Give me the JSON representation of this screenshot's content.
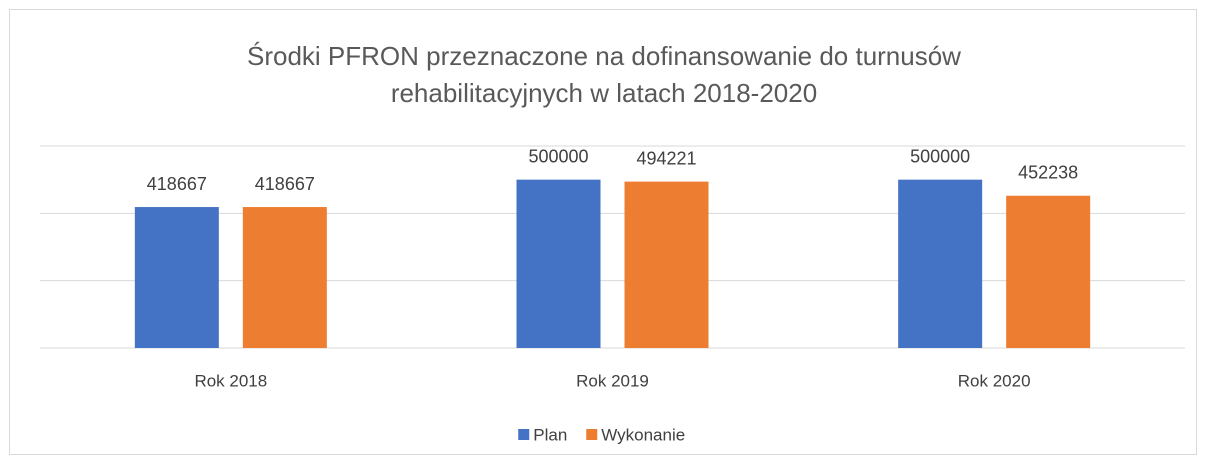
{
  "chart_data": {
    "type": "bar",
    "title": "Środki PFRON przeznaczone na dofinansowanie do turnusów rehabilitacyjnych w latach 2018-2020",
    "categories": [
      "Rok 2018",
      "Rok 2019",
      "Rok 2020"
    ],
    "series": [
      {
        "name": "Plan",
        "color": "#4472c4",
        "values": [
          418667,
          500000,
          500000
        ]
      },
      {
        "name": "Wykonanie",
        "color": "#ed7d31",
        "values": [
          418667,
          494221,
          452238
        ]
      }
    ],
    "ylim": [
      0,
      600000
    ],
    "yticks": [
      0,
      200000,
      400000,
      600000
    ],
    "grid": true,
    "legend": "bottom"
  }
}
